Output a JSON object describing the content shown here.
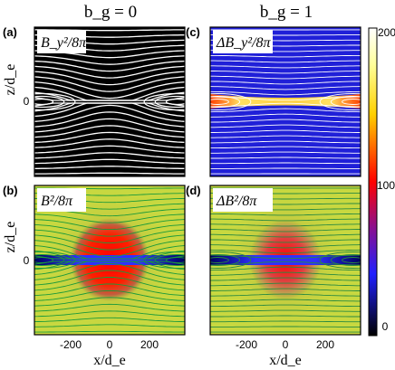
{
  "columns": {
    "left": "b_g = 0",
    "right": "b_g = 1"
  },
  "panels": {
    "a": {
      "letter": "(a)",
      "quantity": "B_y²/8π"
    },
    "b": {
      "letter": "(b)",
      "quantity": "B²/8π"
    },
    "c": {
      "letter": "(c)",
      "quantity": "ΔB_y²/8π"
    },
    "d": {
      "letter": "(d)",
      "quantity": "ΔB²/8π"
    }
  },
  "axes": {
    "ylabel": "z/d_e",
    "xlabel": "x/d_e",
    "y_tick": "0",
    "x_ticks": [
      "-200",
      "0",
      "200"
    ]
  },
  "colorbar": {
    "ticks": [
      "200",
      "100",
      "0"
    ],
    "colors": [
      "#000000",
      "#1a1aff",
      "#ff0000",
      "#ffff66",
      "#ffffff"
    ]
  }
}
